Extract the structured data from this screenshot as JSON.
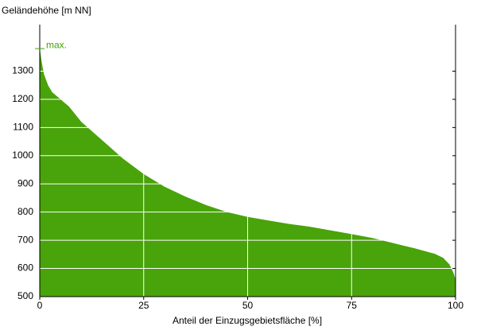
{
  "chart_data": {
    "type": "area",
    "y_label": "Geländehöhe [m NN]",
    "x_label": "Anteil der Einzugsgebietsfläche [%]",
    "color": "#49a30a",
    "x": [
      0,
      0.5,
      1,
      2,
      3,
      5,
      7,
      10,
      15,
      20,
      25,
      30,
      35,
      40,
      45,
      50,
      55,
      60,
      65,
      70,
      75,
      80,
      85,
      90,
      95,
      97,
      98.5,
      99.5,
      100
    ],
    "values": [
      1380,
      1330,
      1290,
      1250,
      1225,
      1200,
      1175,
      1120,
      1055,
      990,
      935,
      890,
      855,
      825,
      800,
      783,
      770,
      758,
      748,
      735,
      722,
      708,
      690,
      672,
      652,
      638,
      615,
      585,
      560
    ],
    "annotation": {
      "text": "max.",
      "value": 1380
    },
    "xlim": [
      0,
      100
    ],
    "xticks": [
      0,
      25,
      50,
      75,
      100
    ],
    "ylim": [
      500,
      1465
    ],
    "yticks": [
      500,
      600,
      700,
      800,
      900,
      1000,
      1100,
      1200,
      1300
    ],
    "grid": true
  }
}
